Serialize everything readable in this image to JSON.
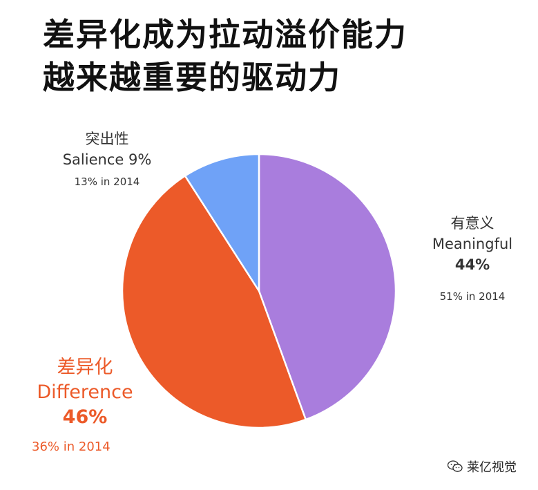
{
  "title": {
    "line1": "差异化成为拉动溢价能力",
    "line2": "越来越重要的驱动力"
  },
  "chart_data": {
    "type": "pie",
    "title": "差异化成为拉动溢价能力越来越重要的驱动力",
    "slices": [
      {
        "key": "meaningful",
        "label_zh": "有意义",
        "label_en": "Meaningful",
        "value": 44,
        "value_text": "44%",
        "prev_text": "51% in 2014",
        "prev_value": 51,
        "color": "#a97ddd"
      },
      {
        "key": "difference",
        "label_zh": "差异化",
        "label_en": "Difference",
        "value": 46,
        "value_text": "46%",
        "prev_text": "36% in 2014",
        "prev_value": 36,
        "color": "#ec5a29"
      },
      {
        "key": "salience",
        "label_zh": "突出性",
        "label_en": "Salience",
        "value": 9,
        "value_text": "9%",
        "prev_text": "13% in 2014",
        "prev_value": 13,
        "color": "#6fa2f7"
      }
    ]
  },
  "labels": {
    "salience": {
      "zh": "突出性",
      "en": "Salience 9%",
      "prev": "13% in 2014"
    },
    "meaningful": {
      "zh": "有意义",
      "en": "Meaningful",
      "pct": "44%",
      "prev": "51% in 2014"
    },
    "difference": {
      "zh": "差异化",
      "en": "Difference",
      "pct": "46%",
      "prev": "36% in 2014"
    }
  },
  "watermark": {
    "text": "莱亿视觉",
    "icon": "wechat-icon"
  }
}
